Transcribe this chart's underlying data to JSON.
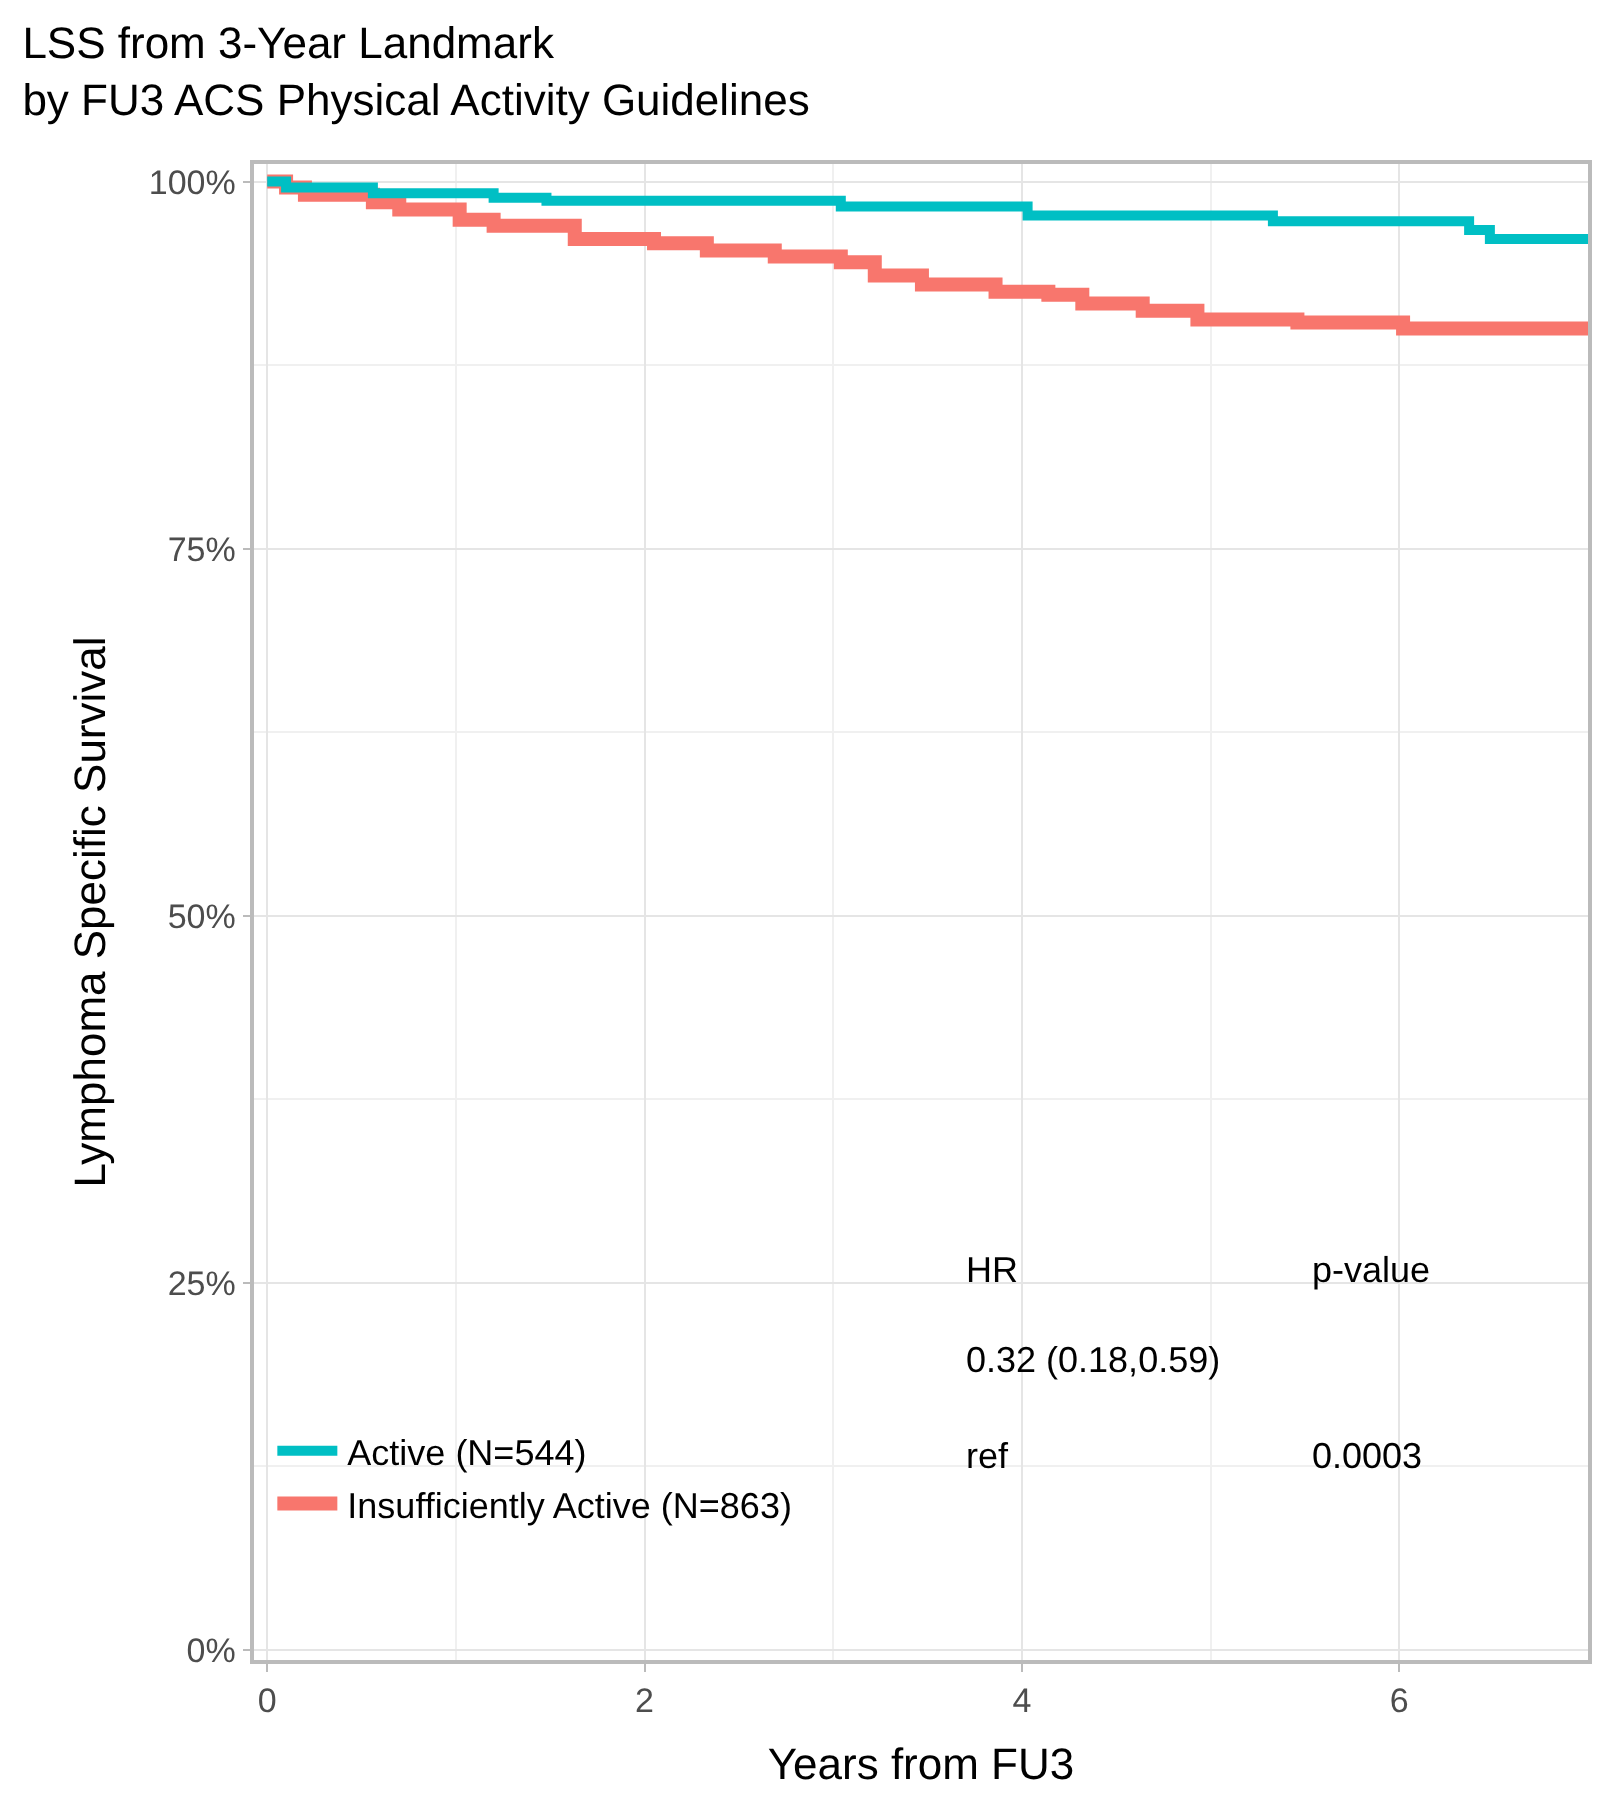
{
  "chart_data": {
    "type": "step",
    "title": "LSS from 3-Year Landmark\nby FU3 ACS Physical Activity Guidelines",
    "xlabel": "Years from FU3",
    "ylabel": "Lymphoma Specific Survival",
    "xlim": [
      -0.07,
      7.0
    ],
    "xticks": [
      0,
      2,
      4,
      6
    ],
    "ylim": [
      -0.7,
      101.2
    ],
    "yticks": [
      {
        "value": 0,
        "label": "0%"
      },
      {
        "value": 25,
        "label": "25%"
      },
      {
        "value": 50,
        "label": "50%"
      },
      {
        "value": 75,
        "label": "75%"
      },
      {
        "value": 100,
        "label": "100%"
      }
    ],
    "grid": true,
    "legend": "bottom left",
    "series": [
      {
        "name": "Active (N=544)",
        "color": "#00bfc4",
        "x": [
          0,
          0.1,
          0.56,
          1.2,
          1.48,
          3.04,
          4.03,
          5.33,
          6.37,
          6.48,
          7.0
        ],
        "values": [
          100,
          99.6,
          99.2,
          98.9,
          98.7,
          98.3,
          97.7,
          97.3,
          96.7,
          96.1,
          96.1
        ]
      },
      {
        "name": "Insufficiently Active (N=863)",
        "color": "#f8766d",
        "x": [
          0,
          0.1,
          0.2,
          0.56,
          0.7,
          1.02,
          1.2,
          1.63,
          2.05,
          2.33,
          2.69,
          3.04,
          3.22,
          3.47,
          3.86,
          4.14,
          4.32,
          4.64,
          4.93,
          5.46,
          6.02,
          7.0
        ],
        "values": [
          100,
          99.6,
          99.1,
          98.6,
          98.1,
          97.4,
          97.0,
          96.1,
          95.8,
          95.3,
          94.9,
          94.5,
          93.6,
          93.0,
          92.5,
          92.3,
          91.7,
          91.2,
          90.6,
          90.4,
          90.0,
          90.0
        ]
      }
    ],
    "annotations": [
      "HR",
      "p-value",
      "0.32 (0.18,0.59)",
      "ref",
      "0.0003"
    ]
  }
}
